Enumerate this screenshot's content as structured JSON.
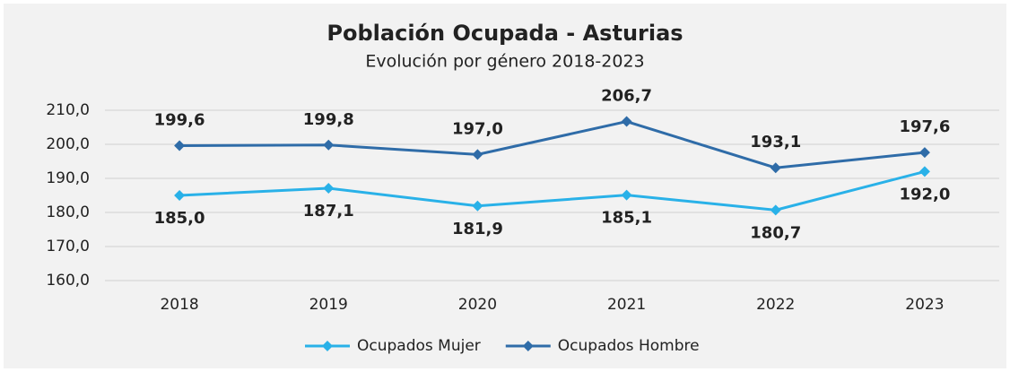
{
  "chart_data": {
    "type": "line",
    "title": "Población Ocupada - Asturias",
    "subtitle": "Evolución por género 2018-2023",
    "categories": [
      "2018",
      "2019",
      "2020",
      "2021",
      "2022",
      "2023"
    ],
    "series": [
      {
        "name": "Ocupados Mujer",
        "color": "#29b1e8",
        "values": [
          185.0,
          187.1,
          181.9,
          185.1,
          180.7,
          192.0
        ],
        "value_labels": [
          "185,0",
          "187,1",
          "181,9",
          "185,1",
          "180,7",
          "192,0"
        ]
      },
      {
        "name": "Ocupados Hombre",
        "color": "#2f6ca8",
        "values": [
          199.6,
          199.8,
          197.0,
          206.7,
          193.1,
          197.6
        ],
        "value_labels": [
          "199,6",
          "199,8",
          "197,0",
          "206,7",
          "193,1",
          "197,6"
        ]
      }
    ],
    "ylim": [
      160,
      210
    ],
    "yticks": [
      {
        "value": 160,
        "label": "160,0"
      },
      {
        "value": 170,
        "label": "170,0"
      },
      {
        "value": 180,
        "label": "180,0"
      },
      {
        "value": 190,
        "label": "190,0"
      },
      {
        "value": 200,
        "label": "200,0"
      },
      {
        "value": 210,
        "label": "210,0"
      }
    ],
    "grid": true,
    "legend": "bottom"
  }
}
